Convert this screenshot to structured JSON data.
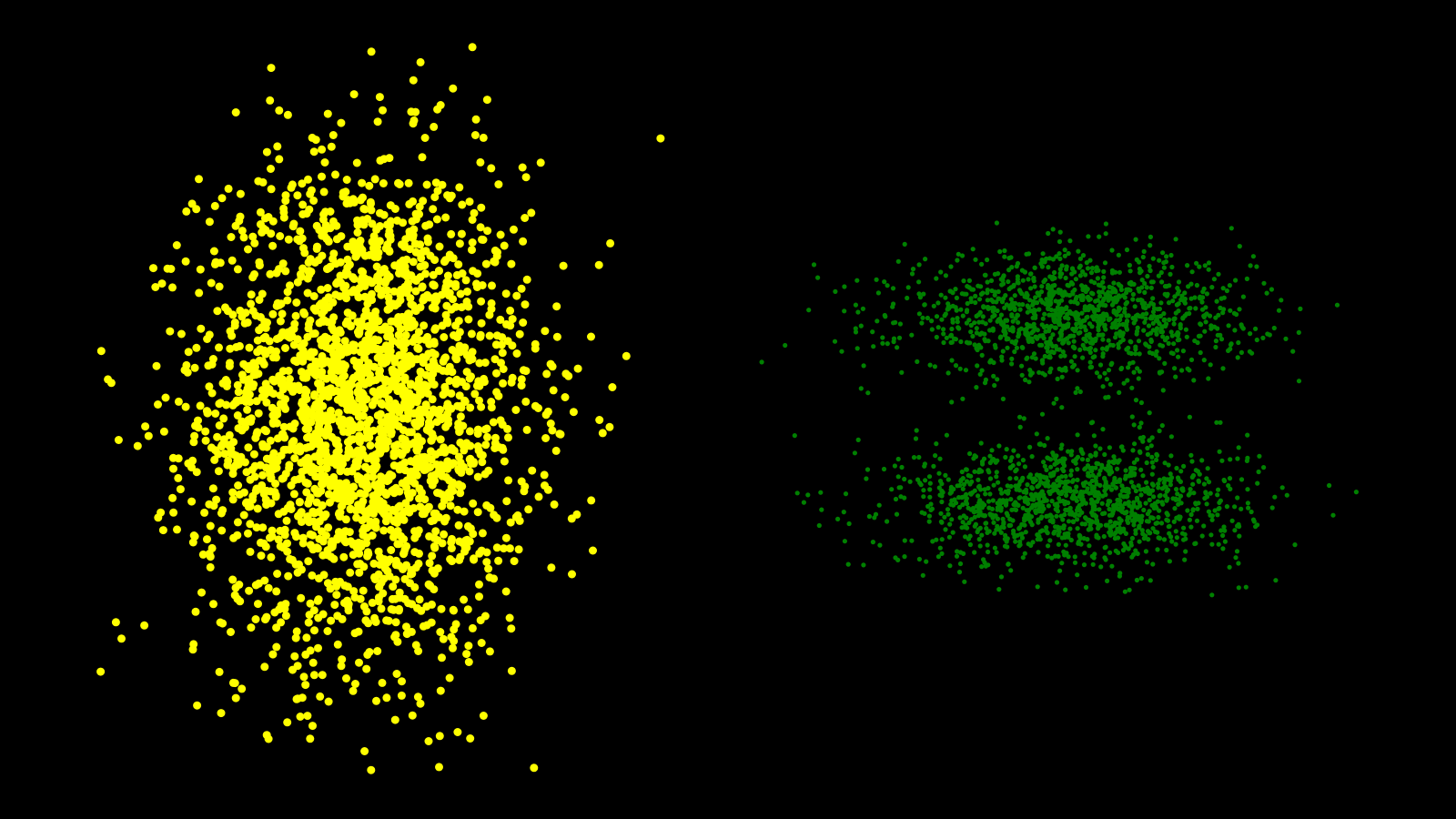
{
  "background": "#000000",
  "chart_data": [
    {
      "type": "scatter",
      "grid": false,
      "axes_visible": false,
      "xlim": [
        -6,
        6
      ],
      "ylim": [
        -6,
        6
      ],
      "series": [
        {
          "color": "#ffff00",
          "distribution": "gaussian",
          "center": [
            0,
            0
          ],
          "std": [
            1.5,
            2.0
          ],
          "count": 2500,
          "sample_points": [
            [
              -0.3,
              0.2
            ],
            [
              0.4,
              -0.5
            ],
            [
              1.2,
              1.8
            ],
            [
              -1.7,
              -1.1
            ],
            [
              2.8,
              0.9
            ],
            [
              -2.6,
              3.4
            ],
            [
              0.1,
              -3.9
            ],
            [
              3.6,
              -0.4
            ],
            [
              -3.8,
              0.7
            ],
            [
              0.9,
              4.6
            ],
            [
              -1.1,
              -4.3
            ],
            [
              2.3,
              -2.7
            ]
          ]
        }
      ]
    },
    {
      "type": "scatter",
      "grid": false,
      "axes_visible": false,
      "xlim": [
        -6,
        6
      ],
      "ylim": [
        -6,
        6
      ],
      "series": [
        {
          "color": "#008000",
          "distribution": "gaussian",
          "center": [
            0,
            1.5
          ],
          "std": [
            1.5,
            0.5
          ],
          "count": 1250,
          "sample_points": [
            [
              0.2,
              1.6
            ],
            [
              -1.4,
              1.3
            ],
            [
              2.1,
              1.8
            ],
            [
              -3.1,
              1.4
            ],
            [
              3.4,
              1.2
            ],
            [
              -0.7,
              2.1
            ],
            [
              1.0,
              0.9
            ],
            [
              -4.6,
              1.6
            ]
          ]
        },
        {
          "color": "#008000",
          "distribution": "gaussian",
          "center": [
            0,
            -1.5
          ],
          "std": [
            1.5,
            0.5
          ],
          "count": 1250,
          "sample_points": [
            [
              -0.1,
              -1.5
            ],
            [
              1.3,
              -1.8
            ],
            [
              -1.8,
              -1.2
            ],
            [
              2.9,
              -1.6
            ],
            [
              -3.0,
              -1.4
            ],
            [
              0.6,
              -0.9
            ],
            [
              -0.9,
              -2.0
            ],
            [
              4.5,
              -1.7
            ]
          ]
        }
      ]
    }
  ]
}
